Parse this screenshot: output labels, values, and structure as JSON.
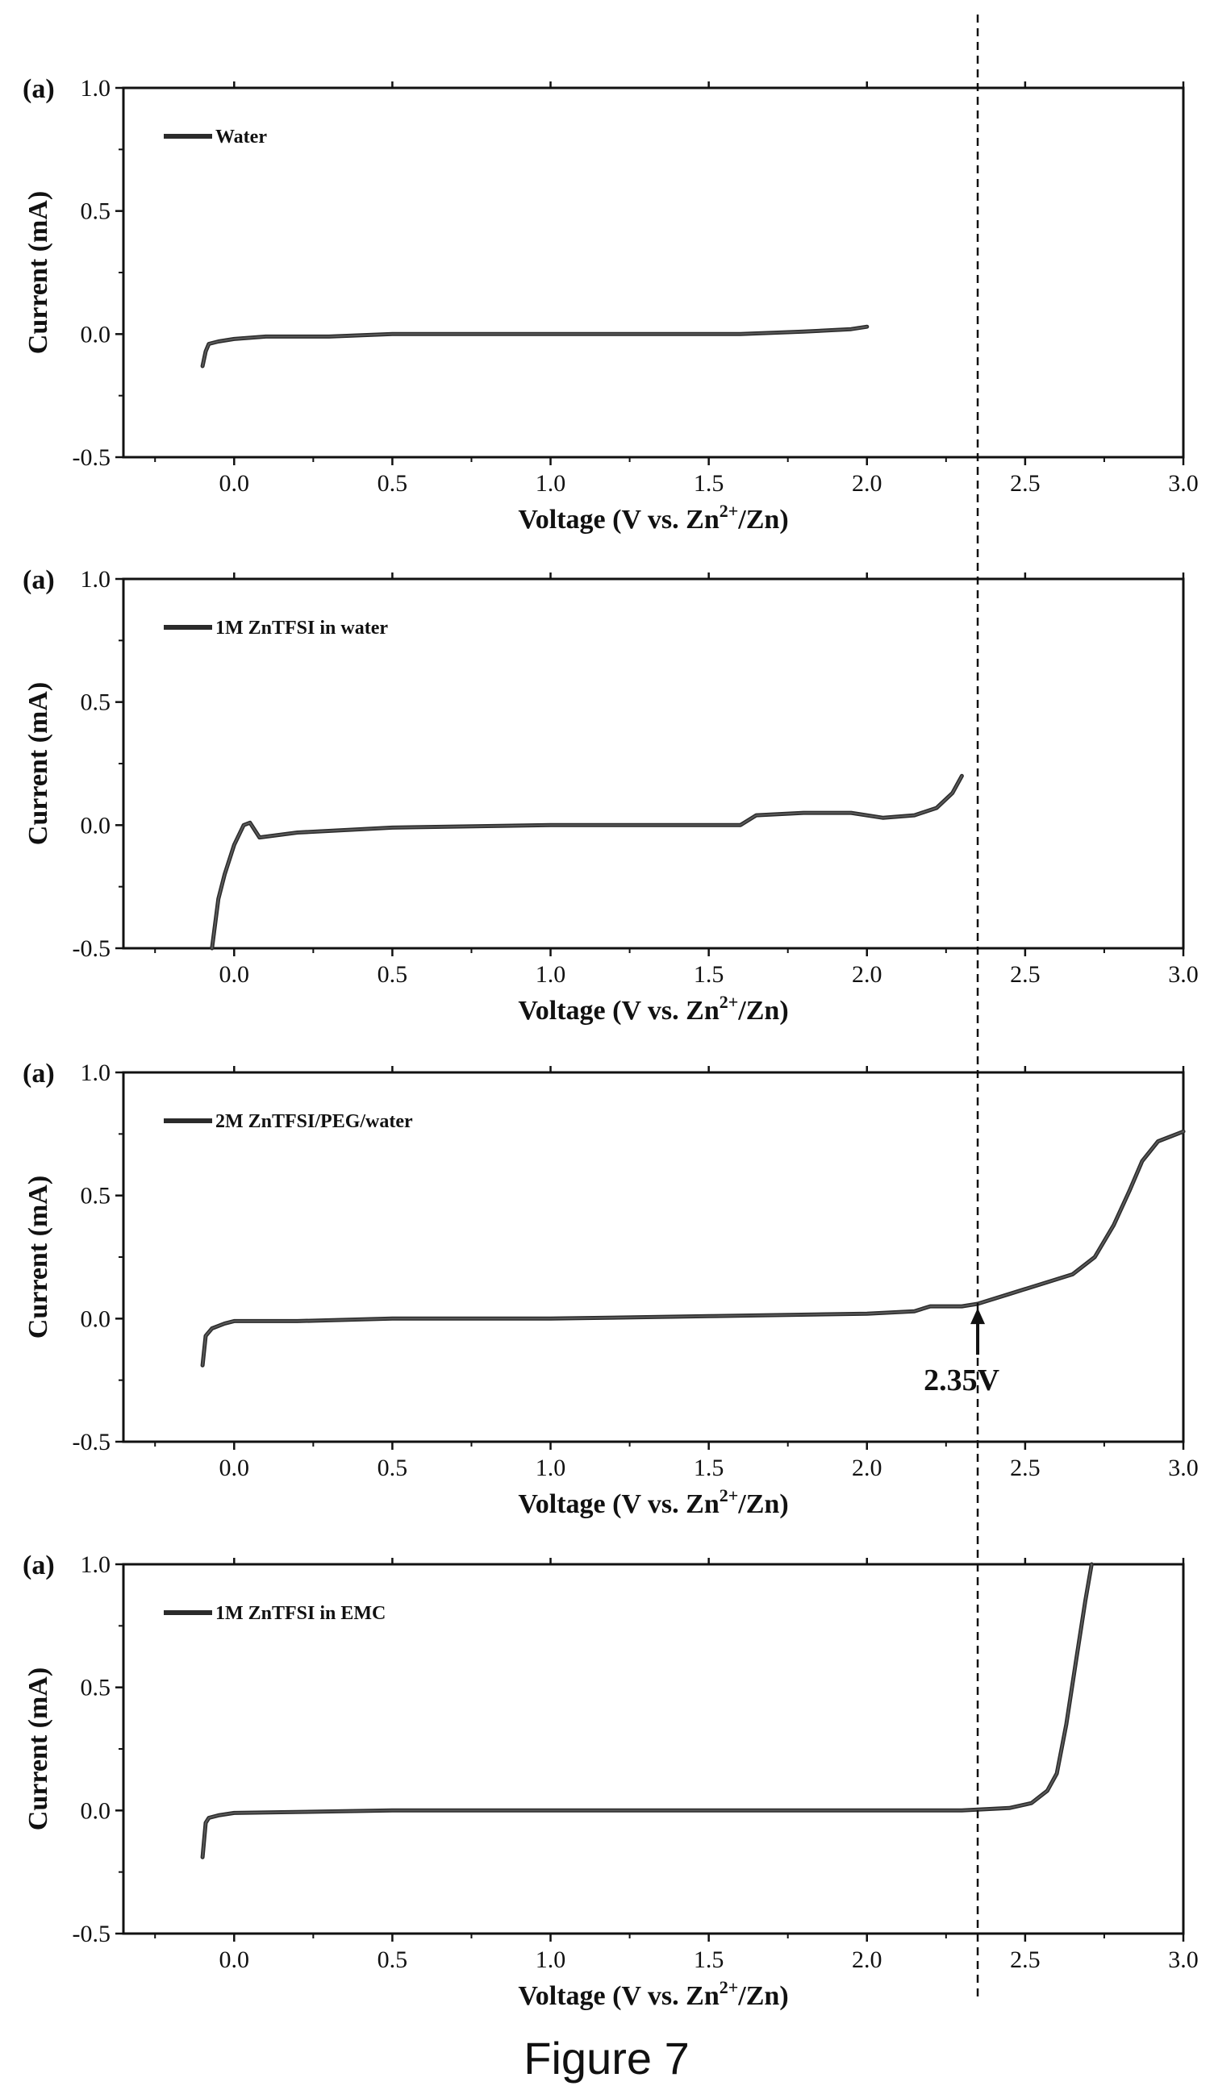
{
  "caption": "Figure 7",
  "colors": {
    "axis": "#111111",
    "trace": "#2b2b2b",
    "trace_light": "#7a7a7a",
    "reference_line": "#111111"
  },
  "reference_line_x": 2.35,
  "chart_data": [
    {
      "type": "line",
      "panel_label": "(a)",
      "xlabel_main": "Voltage (V vs. Zn",
      "xlabel_sup": "2+",
      "xlabel_end": "/Zn)",
      "ylabel": "Current (mA)",
      "xlim": [
        -0.35,
        3.0
      ],
      "ylim": [
        -0.5,
        1.0
      ],
      "xticks": [
        "0.0",
        "0.5",
        "1.0",
        "1.5",
        "2.0",
        "2.5",
        "3.0"
      ],
      "yticks": [
        "-0.5",
        "0.0",
        "0.5",
        "1.0"
      ],
      "legend_position": "top-left",
      "series": [
        {
          "name": "Water",
          "x": [
            -0.1,
            -0.09,
            -0.08,
            -0.05,
            0.0,
            0.1,
            0.3,
            0.5,
            0.8,
            1.0,
            1.3,
            1.6,
            1.8,
            1.95,
            2.0
          ],
          "y": [
            -0.13,
            -0.07,
            -0.04,
            -0.03,
            -0.02,
            -0.01,
            -0.01,
            0.0,
            0.0,
            0.0,
            0.0,
            0.0,
            0.01,
            0.02,
            0.03
          ]
        }
      ],
      "annotation": null
    },
    {
      "type": "line",
      "panel_label": "(a)",
      "xlabel_main": "Voltage (V vs. Zn",
      "xlabel_sup": "2+",
      "xlabel_end": "/Zn)",
      "ylabel": "Current (mA)",
      "xlim": [
        -0.35,
        3.0
      ],
      "ylim": [
        -0.5,
        1.0
      ],
      "xticks": [
        "0.0",
        "0.5",
        "1.0",
        "1.5",
        "2.0",
        "2.5",
        "3.0"
      ],
      "yticks": [
        "-0.5",
        "0.0",
        "0.5",
        "1.0"
      ],
      "legend_position": "top-left",
      "series": [
        {
          "name": "1M ZnTFSI in water",
          "x": [
            -0.07,
            -0.05,
            -0.03,
            0.0,
            0.03,
            0.05,
            0.08,
            0.2,
            0.5,
            1.0,
            1.6,
            1.65,
            1.8,
            1.95,
            2.05,
            2.15,
            2.22,
            2.27,
            2.3
          ],
          "y": [
            -0.5,
            -0.3,
            -0.2,
            -0.08,
            0.0,
            0.01,
            -0.05,
            -0.03,
            -0.01,
            0.0,
            0.0,
            0.04,
            0.05,
            0.05,
            0.03,
            0.04,
            0.07,
            0.13,
            0.2
          ]
        }
      ],
      "annotation": null
    },
    {
      "type": "line",
      "panel_label": "(a)",
      "xlabel_main": "Voltage (V vs. Zn",
      "xlabel_sup": "2+",
      "xlabel_end": "/Zn)",
      "ylabel": "Current (mA)",
      "xlim": [
        -0.35,
        3.0
      ],
      "ylim": [
        -0.5,
        1.0
      ],
      "xticks": [
        "0.0",
        "0.5",
        "1.0",
        "1.5",
        "2.0",
        "2.5",
        "3.0"
      ],
      "yticks": [
        "-0.5",
        "0.0",
        "0.5",
        "1.0"
      ],
      "legend_position": "top-left",
      "series": [
        {
          "name": "2M ZnTFSI/PEG/water",
          "x": [
            -0.1,
            -0.09,
            -0.07,
            -0.03,
            0.0,
            0.2,
            0.5,
            1.0,
            1.5,
            2.0,
            2.15,
            2.2,
            2.3,
            2.35,
            2.45,
            2.55,
            2.65,
            2.72,
            2.78,
            2.83,
            2.87,
            2.92,
            3.0
          ],
          "y": [
            -0.19,
            -0.07,
            -0.04,
            -0.02,
            -0.01,
            -0.01,
            0.0,
            0.0,
            0.01,
            0.02,
            0.03,
            0.05,
            0.05,
            0.06,
            0.1,
            0.14,
            0.18,
            0.25,
            0.38,
            0.52,
            0.64,
            0.72,
            0.76
          ]
        }
      ],
      "annotation": {
        "text": "2.35V",
        "x": 2.35,
        "y": 0.05
      }
    },
    {
      "type": "line",
      "panel_label": "(a)",
      "xlabel_main": "Voltage (V vs. Zn",
      "xlabel_sup": "2+",
      "xlabel_end": "/Zn)",
      "ylabel": "Current (mA)",
      "xlim": [
        -0.35,
        3.0
      ],
      "ylim": [
        -0.5,
        1.0
      ],
      "xticks": [
        "0.0",
        "0.5",
        "1.0",
        "1.5",
        "2.0",
        "2.5",
        "3.0"
      ],
      "yticks": [
        "-0.5",
        "0.0",
        "0.5",
        "1.0"
      ],
      "legend_position": "top-left",
      "series": [
        {
          "name": "1M ZnTFSI in EMC",
          "x": [
            -0.1,
            -0.09,
            -0.08,
            -0.05,
            0.0,
            0.5,
            1.0,
            1.5,
            2.0,
            2.3,
            2.45,
            2.52,
            2.57,
            2.6,
            2.63,
            2.66,
            2.69,
            2.71
          ],
          "y": [
            -0.19,
            -0.05,
            -0.03,
            -0.02,
            -0.01,
            0.0,
            0.0,
            0.0,
            0.0,
            0.0,
            0.01,
            0.03,
            0.08,
            0.15,
            0.35,
            0.6,
            0.85,
            1.0
          ]
        }
      ],
      "annotation": null
    }
  ]
}
